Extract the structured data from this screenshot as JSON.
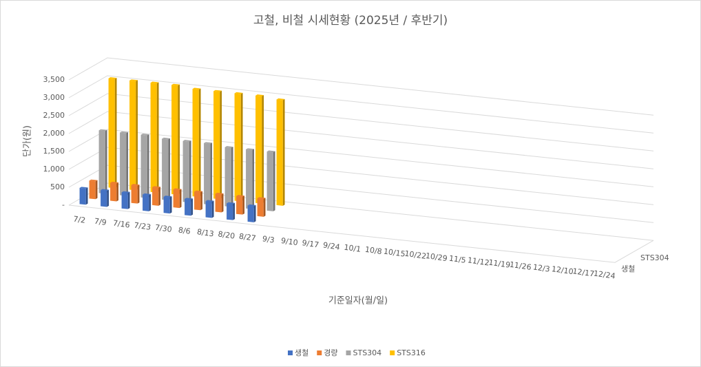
{
  "chart_data": {
    "type": "bar3d",
    "title": "고철, 비철 시세현황 (2025년 / 후반기)",
    "y_axis_label": "단가(원)",
    "x_axis_label": "기준일자(월/일)",
    "categories": [
      "7/2",
      "7/9",
      "7/16",
      "7/23",
      "7/30",
      "8/6",
      "8/13",
      "8/20",
      "8/27",
      "9/3",
      "9/10",
      "9/17",
      "9/24",
      "10/1",
      "10/8",
      "10/15",
      "10/22",
      "10/29",
      "11/5",
      "11/12",
      "11/19",
      "11/26",
      "12/3",
      "12/10",
      "12/17",
      "12/24"
    ],
    "series": [
      {
        "name": "생철",
        "color": "#4472c4",
        "values": [
          450,
          450,
          450,
          450,
          450,
          450,
          450,
          450,
          450,
          null,
          null,
          null,
          null,
          null,
          null,
          null,
          null,
          null,
          null,
          null,
          null,
          null,
          null,
          null,
          null,
          null
        ]
      },
      {
        "name": "경량",
        "color": "#ed7d31",
        "values": [
          500,
          500,
          500,
          500,
          500,
          500,
          500,
          500,
          500,
          null,
          null,
          null,
          null,
          null,
          null,
          null,
          null,
          null,
          null,
          null,
          null,
          null,
          null,
          null,
          null,
          null
        ]
      },
      {
        "name": "STS304",
        "color": "#a5a5a5",
        "values": [
          1750,
          1750,
          1750,
          1700,
          1700,
          1700,
          1650,
          1650,
          1650,
          null,
          null,
          null,
          null,
          null,
          null,
          null,
          null,
          null,
          null,
          null,
          null,
          null,
          null,
          null,
          null,
          null
        ]
      },
      {
        "name": "STS316",
        "color": "#ffc000",
        "values": [
          3050,
          3050,
          3050,
          3050,
          3000,
          3000,
          3000,
          3000,
          2950,
          null,
          null,
          null,
          null,
          null,
          null,
          null,
          null,
          null,
          null,
          null,
          null,
          null,
          null,
          null,
          null,
          null
        ]
      }
    ],
    "depth_labels": [
      0,
      2
    ],
    "ylim": [
      0,
      3500
    ],
    "yticks": [
      {
        "value": 0,
        "label": "-"
      },
      500,
      {
        "value": 1000,
        "label": "1,000"
      },
      {
        "value": 1500,
        "label": "1,500"
      },
      {
        "value": 2000,
        "label": "2,000"
      },
      {
        "value": 2500,
        "label": "2,500"
      },
      {
        "value": 3000,
        "label": "3,000"
      },
      {
        "value": 3500,
        "label": "3,500"
      }
    ],
    "grid": true,
    "legend": "bottom"
  }
}
